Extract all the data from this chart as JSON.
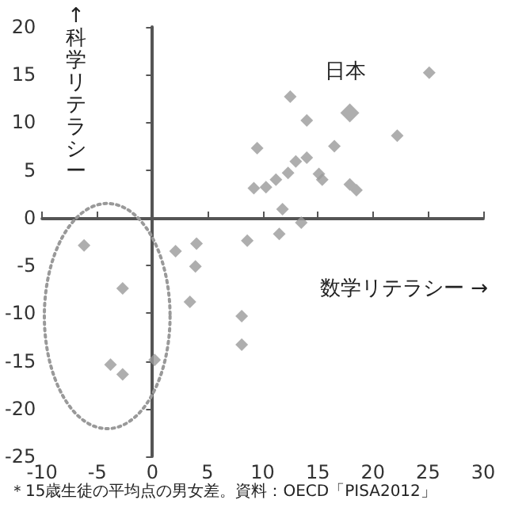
{
  "chart_data": {
    "type": "scatter",
    "xlabel": "数学リテラシー →",
    "ylabel": "↑ 科学リテラシー",
    "marker": "diamond",
    "xlim": [
      -10,
      30
    ],
    "xticks": [
      -10,
      -5,
      0,
      5,
      10,
      15,
      20,
      25,
      30
    ],
    "ylim": [
      -25,
      20
    ],
    "yticks": [
      -25,
      -20,
      -15,
      -10,
      -5,
      0,
      5,
      10,
      15,
      20
    ],
    "annotations": [
      {
        "text": "日本",
        "x": 17.9,
        "y": 11
      },
      "＊15歳生徒の平均点の男女差。資料：OECD「PISA2012」"
    ],
    "series": [
      {
        "color": "#9a9a9a",
        "x": [
          25.1,
          12.5,
          14,
          22.2,
          9.5,
          16.5,
          13,
          14,
          12.3,
          15.1,
          15.4,
          11.2,
          9.2,
          10.3,
          17.9,
          18.5,
          11.8,
          13.5,
          11.5,
          8.6,
          4,
          2.1,
          -6.2,
          3.9,
          -2.7,
          3.4,
          8.1,
          8.1,
          0.2,
          -3.8,
          -2.7
        ],
        "values": [
          15.2,
          12.7,
          10.2,
          8.6,
          7.3,
          7.5,
          5.9,
          6.3,
          4.7,
          4.6,
          4,
          4,
          3.1,
          3.2,
          3.5,
          2.9,
          0.9,
          -0.5,
          -1.7,
          -2.4,
          -2.7,
          -3.5,
          -2.9,
          -5.1,
          -7.4,
          -8.8,
          -10.3,
          -13.3,
          -14.9,
          -15.4,
          -16.4
        ]
      },
      {
        "color": "#9a9a9a",
        "x": [
          17.9
        ],
        "values": [
          11
        ]
      }
    ]
  }
}
